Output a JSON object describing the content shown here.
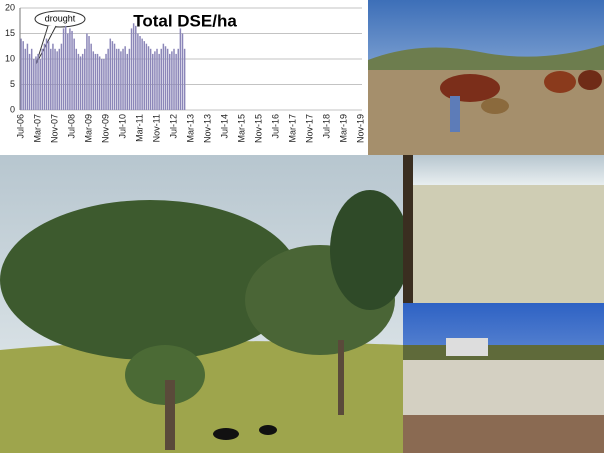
{
  "chart_data": {
    "type": "bar",
    "title": "Total DSE/ha",
    "annotation": "drought",
    "color": "#8b86b8",
    "categories": [
      "Jul-06",
      null,
      null,
      null,
      null,
      null,
      null,
      null,
      "Mar-07",
      null,
      null,
      null,
      null,
      null,
      null,
      null,
      "Nov-07",
      null,
      null,
      null,
      null,
      null,
      null,
      null,
      "Jul-08",
      null,
      null,
      null,
      null,
      null,
      null,
      null,
      "Mar-09",
      null,
      null,
      null,
      null,
      null,
      null,
      null,
      "Nov-09",
      null,
      null,
      null,
      null,
      null,
      null,
      null,
      "Jul-10",
      null,
      null,
      null,
      null,
      null,
      null,
      null,
      "Mar-11",
      null,
      null,
      null,
      null,
      null,
      null,
      null,
      "Nov-11",
      null,
      null,
      null,
      null,
      null,
      null,
      null,
      "Jul-12",
      null,
      null,
      null,
      null,
      null,
      null,
      null,
      "Mar-13",
      null,
      null,
      null,
      null,
      null,
      null,
      null,
      "Nov-13",
      null,
      null,
      null,
      null,
      null,
      null,
      null,
      "Jul-14",
      null,
      null,
      null,
      null,
      null,
      null,
      null,
      "Mar-15",
      null,
      null,
      null,
      null,
      null,
      null,
      null,
      "Nov-15",
      null,
      null,
      null,
      null,
      null,
      null,
      null,
      "Jul-16",
      null,
      null,
      null,
      null,
      null,
      null,
      null,
      "Mar-17",
      null,
      null,
      null,
      null,
      null,
      null,
      null,
      "Nov-17",
      null,
      null,
      null,
      null,
      null,
      null,
      null,
      "Jul-18",
      null,
      null,
      null,
      null,
      null,
      null,
      null,
      "Mar-19",
      null,
      null,
      null,
      null,
      null,
      null,
      null,
      "Nov-19"
    ],
    "values": [
      14,
      13.5,
      12,
      13,
      11,
      12,
      10,
      10.5,
      11,
      10,
      12,
      13,
      14,
      13.5,
      12,
      13,
      12,
      11.5,
      12,
      13,
      16,
      16.5,
      15,
      16,
      15.5,
      14,
      12,
      11,
      10.5,
      11,
      12,
      15,
      14.5,
      13,
      11.5,
      11,
      11,
      10.5,
      10,
      10,
      11,
      12,
      14,
      13.5,
      13,
      12,
      12,
      11.5,
      12,
      12.5,
      11,
      12,
      16,
      17,
      16.5,
      15,
      14.5,
      14,
      13.5,
      13,
      12.5,
      12,
      11,
      11.5,
      12,
      11,
      12,
      13,
      12.5,
      12,
      11,
      11.5,
      12,
      11,
      12,
      16,
      15,
      12,
      null,
      null,
      null,
      null,
      null,
      null,
      null,
      null,
      null,
      null,
      null,
      null,
      null,
      null,
      null,
      null,
      null,
      null,
      null,
      null,
      null,
      null,
      null,
      null,
      null,
      null,
      null,
      null,
      null,
      null,
      null,
      null,
      null,
      null,
      null,
      null,
      null,
      null,
      null,
      null,
      null,
      null,
      null,
      null,
      null,
      null,
      null,
      null,
      null,
      null,
      null,
      null,
      null,
      null,
      null,
      null,
      null,
      null,
      null,
      null,
      null,
      null,
      null,
      null,
      null,
      null,
      null,
      null,
      null,
      null,
      null,
      null,
      null,
      null,
      null,
      null,
      null,
      null,
      null,
      null,
      null,
      null,
      null
    ],
    "ylim": [
      0,
      20
    ],
    "yticks": [
      0,
      5,
      10,
      15,
      20
    ]
  }
}
